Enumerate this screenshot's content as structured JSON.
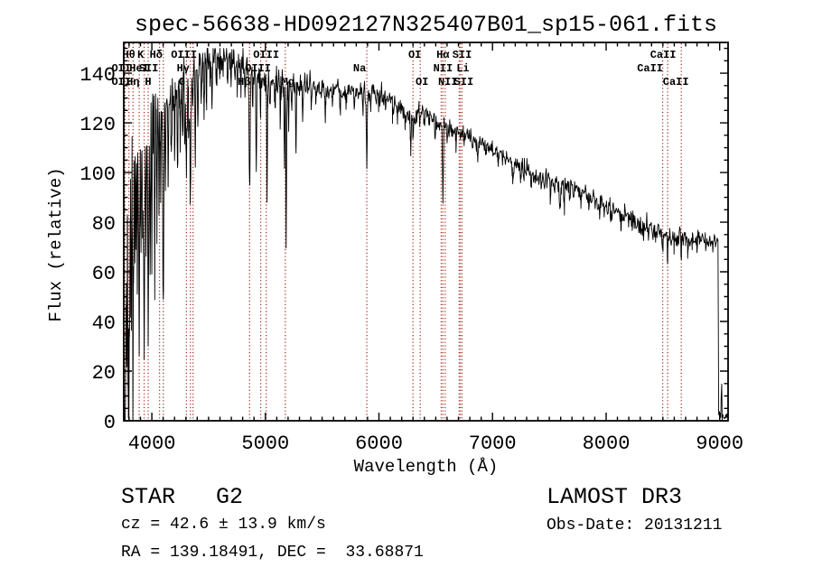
{
  "title": "spec-56638-HD092127N325407B01_sp15-061.fits",
  "annotations": {
    "class_line": "STAR   G2",
    "cz_line": "cz = 42.6 ± 13.9 km/s",
    "radec_line": "RA = 139.18491, DEC =  33.68871",
    "survey": "LAMOST DR3",
    "obsdate": "Obs-Date: 20131211"
  },
  "chart_data": {
    "type": "line",
    "title": "spec-56638-HD092127N325407B01_sp15-061.fits",
    "xlabel": "Wavelength (Å)",
    "ylabel": "Flux (relative)",
    "xlim": [
      3753,
      9074
    ],
    "ylim": [
      0,
      152.4
    ],
    "grid": false,
    "line_color": "#000000",
    "marker_color": "#a33428",
    "xticks": {
      "major": [
        4000,
        5000,
        6000,
        7000,
        8000,
        9000
      ],
      "labels": [
        "4000",
        "5000",
        "6000",
        "7000",
        "8000",
        "9000"
      ],
      "minor_step": 100
    },
    "yticks": {
      "major": [
        0,
        20,
        40,
        60,
        80,
        100,
        120,
        140
      ],
      "labels": [
        "0",
        "20",
        "40",
        "60",
        "80",
        "100",
        "120",
        "140"
      ],
      "minor_step": 5
    },
    "spectral_lines": [
      {
        "label": "Hθ",
        "wavelength": 3798,
        "row": 1,
        "dx": 0
      },
      {
        "label": "K",
        "wavelength": 3933,
        "row": 1,
        "dx": -4
      },
      {
        "label": "Hδ",
        "wavelength": 4101,
        "row": 1,
        "dx": -8
      },
      {
        "label": "OIII",
        "wavelength": 4363,
        "row": 1,
        "dx": -10
      },
      {
        "label": "OIII",
        "wavelength": 5007,
        "row": 1,
        "dx": 0
      },
      {
        "label": "OI",
        "wavelength": 6300,
        "row": 1,
        "dx": 2
      },
      {
        "label": "Hα",
        "wavelength": 6563,
        "row": 1,
        "dx": 0
      },
      {
        "label": "SII",
        "wavelength": 6716,
        "row": 1,
        "dx": 2
      },
      {
        "label": "CaII",
        "wavelength": 8542,
        "row": 1,
        "dx": -5
      },
      {
        "label": "OII",
        "wavelength": 3727,
        "row": 2,
        "dx": -4
      },
      {
        "label": "HeI",
        "wavelength": 3889,
        "row": 2,
        "dx": 0
      },
      {
        "label": "SII",
        "wavelength": 4068,
        "row": 2,
        "dx": -12
      },
      {
        "label": "Hγ",
        "wavelength": 4340,
        "row": 2,
        "dx": -8
      },
      {
        "label": "OIII",
        "wavelength": 4959,
        "row": 2,
        "dx": -3
      },
      {
        "label": "Na",
        "wavelength": 5893,
        "row": 2,
        "dx": -8
      },
      {
        "label": "NII",
        "wavelength": 6548,
        "row": 2,
        "dx": 2
      },
      {
        "label": "Li",
        "wavelength": 6707,
        "row": 2,
        "dx": 4
      },
      {
        "label": "CaII",
        "wavelength": 8498,
        "row": 2,
        "dx": -14
      },
      {
        "label": "OII",
        "wavelength": 3729,
        "row": 3,
        "dx": -4
      },
      {
        "label": "Hη",
        "wavelength": 3835,
        "row": 3,
        "dx": 0
      },
      {
        "label": "H",
        "wavelength": 3968,
        "row": 3,
        "dx": 0
      },
      {
        "label": "G",
        "wavelength": 4305,
        "row": 3,
        "dx": -5
      },
      {
        "label": "Hβ",
        "wavelength": 4861,
        "row": 3,
        "dx": -6
      },
      {
        "label": "Mg",
        "wavelength": 5175,
        "row": 3,
        "dx": 3
      },
      {
        "label": "OI",
        "wavelength": 6363,
        "row": 3,
        "dx": 2
      },
      {
        "label": "NII",
        "wavelength": 6583,
        "row": 3,
        "dx": 3
      },
      {
        "label": "SII",
        "wavelength": 6731,
        "row": 3,
        "dx": 2
      },
      {
        "label": "CaII",
        "wavelength": 8662,
        "row": 3,
        "dx": -6
      }
    ],
    "continuum": [
      [
        3753,
        90
      ],
      [
        3780,
        105
      ],
      [
        3810,
        115
      ],
      [
        3850,
        120
      ],
      [
        3900,
        122
      ],
      [
        3950,
        122
      ],
      [
        4000,
        125
      ],
      [
        4060,
        128
      ],
      [
        4120,
        130
      ],
      [
        4180,
        133
      ],
      [
        4240,
        136
      ],
      [
        4300,
        139
      ],
      [
        4360,
        141
      ],
      [
        4420,
        143
      ],
      [
        4480,
        145
      ],
      [
        4540,
        146
      ],
      [
        4600,
        147
      ],
      [
        4660,
        148
      ],
      [
        4720,
        146
      ],
      [
        4780,
        144
      ],
      [
        4840,
        141
      ],
      [
        4900,
        139
      ],
      [
        4960,
        138
      ],
      [
        5020,
        137
      ],
      [
        5080,
        136
      ],
      [
        5140,
        135
      ],
      [
        5200,
        134
      ],
      [
        5300,
        135
      ],
      [
        5400,
        135
      ],
      [
        5500,
        134
      ],
      [
        5600,
        133
      ],
      [
        5700,
        132
      ],
      [
        5800,
        133
      ],
      [
        5893,
        131
      ],
      [
        5960,
        132
      ],
      [
        6040,
        131
      ],
      [
        6120,
        129
      ],
      [
        6200,
        126
      ],
      [
        6270,
        122
      ],
      [
        6340,
        124
      ],
      [
        6420,
        124
      ],
      [
        6500,
        121
      ],
      [
        6563,
        119
      ],
      [
        6640,
        117
      ],
      [
        6720,
        116
      ],
      [
        6800,
        114
      ],
      [
        6880,
        112
      ],
      [
        6960,
        110
      ],
      [
        7040,
        108
      ],
      [
        7120,
        106
      ],
      [
        7200,
        103
      ],
      [
        7280,
        101
      ],
      [
        7360,
        99
      ],
      [
        7440,
        98
      ],
      [
        7520,
        96
      ],
      [
        7600,
        95
      ],
      [
        7680,
        94
      ],
      [
        7760,
        92
      ],
      [
        7840,
        90
      ],
      [
        7920,
        88
      ],
      [
        8000,
        86
      ],
      [
        8080,
        85
      ],
      [
        8160,
        83
      ],
      [
        8240,
        81
      ],
      [
        8320,
        79
      ],
      [
        8400,
        77
      ],
      [
        8480,
        76
      ],
      [
        8560,
        74
      ],
      [
        8640,
        74
      ],
      [
        8700,
        74
      ],
      [
        8760,
        73
      ],
      [
        8840,
        73
      ],
      [
        8920,
        72
      ],
      [
        8985,
        72
      ],
      [
        8988,
        40
      ],
      [
        8991,
        3
      ],
      [
        9010,
        2
      ],
      [
        9018,
        17
      ],
      [
        9022,
        2
      ],
      [
        9074,
        1
      ]
    ],
    "absorption_features": [
      [
        3756,
        3,
        75
      ],
      [
        3762,
        3,
        105
      ],
      [
        3771,
        3,
        88
      ],
      [
        3780,
        3,
        62
      ],
      [
        3790,
        3,
        76
      ],
      [
        3798,
        4,
        95
      ],
      [
        3808,
        3,
        58
      ],
      [
        3820,
        3,
        66
      ],
      [
        3835,
        4,
        92
      ],
      [
        3848,
        3,
        52
      ],
      [
        3860,
        3,
        56
      ],
      [
        3872,
        3,
        46
      ],
      [
        3889,
        4,
        88
      ],
      [
        3905,
        3,
        46
      ],
      [
        3920,
        3,
        42
      ],
      [
        3933,
        5,
        95
      ],
      [
        3950,
        3,
        46
      ],
      [
        3968,
        5,
        92
      ],
      [
        3985,
        3,
        50
      ],
      [
        4000,
        3,
        55
      ],
      [
        4026,
        3,
        60
      ],
      [
        4045,
        3,
        50
      ],
      [
        4063,
        3,
        45
      ],
      [
        4078,
        3,
        40
      ],
      [
        4101,
        5,
        80
      ],
      [
        4120,
        3,
        35
      ],
      [
        4144,
        3,
        40
      ],
      [
        4172,
        3,
        30
      ],
      [
        4200,
        3,
        28
      ],
      [
        4226,
        3,
        42
      ],
      [
        4250,
        3,
        25
      ],
      [
        4271,
        3,
        30
      ],
      [
        4290,
        3,
        28
      ],
      [
        4305,
        6,
        32
      ],
      [
        4325,
        3,
        22
      ],
      [
        4340,
        5,
        48
      ],
      [
        4360,
        3,
        18
      ],
      [
        4383,
        3,
        40
      ],
      [
        4405,
        3,
        25
      ],
      [
        4435,
        3,
        16
      ],
      [
        4460,
        3,
        18
      ],
      [
        4481,
        3,
        15
      ],
      [
        4530,
        3,
        15
      ],
      [
        4570,
        3,
        12
      ],
      [
        4620,
        3,
        10
      ],
      [
        4668,
        3,
        15
      ],
      [
        4700,
        3,
        10
      ],
      [
        4755,
        3,
        10
      ],
      [
        4785,
        3,
        11
      ],
      [
        4820,
        3,
        12
      ],
      [
        4861,
        5,
        46
      ],
      [
        4890,
        3,
        10
      ],
      [
        4920,
        3,
        40
      ],
      [
        4957,
        3,
        12
      ],
      [
        5015,
        3,
        45
      ],
      [
        5040,
        3,
        12
      ],
      [
        5085,
        3,
        10
      ],
      [
        5130,
        3,
        12
      ],
      [
        5168,
        3,
        30
      ],
      [
        5183,
        3,
        65
      ],
      [
        5205,
        3,
        14
      ],
      [
        5230,
        3,
        8
      ],
      [
        5270,
        3,
        28
      ],
      [
        5328,
        3,
        12
      ],
      [
        5405,
        3,
        10
      ],
      [
        5445,
        3,
        8
      ],
      [
        5528,
        3,
        8
      ],
      [
        5590,
        3,
        7
      ],
      [
        5658,
        3,
        7
      ],
      [
        5710,
        3,
        6
      ],
      [
        5782,
        3,
        7
      ],
      [
        5860,
        3,
        6
      ],
      [
        5893,
        4,
        30
      ],
      [
        5930,
        3,
        6
      ],
      [
        6000,
        3,
        5
      ],
      [
        6060,
        3,
        5
      ],
      [
        6122,
        3,
        7
      ],
      [
        6162,
        3,
        7
      ],
      [
        6230,
        3,
        6
      ],
      [
        6280,
        4,
        12
      ],
      [
        6300,
        3,
        8
      ],
      [
        6320,
        3,
        6
      ],
      [
        6360,
        3,
        6
      ],
      [
        6400,
        3,
        5
      ],
      [
        6440,
        3,
        6
      ],
      [
        6495,
        3,
        10
      ],
      [
        6563,
        4,
        30
      ],
      [
        6600,
        3,
        5
      ],
      [
        6680,
        3,
        5
      ],
      [
        6750,
        3,
        5
      ],
      [
        6870,
        5,
        8
      ],
      [
        6940,
        3,
        4
      ],
      [
        7050,
        3,
        4
      ],
      [
        7180,
        5,
        6
      ],
      [
        7250,
        3,
        4
      ],
      [
        7340,
        3,
        5
      ],
      [
        7430,
        3,
        4
      ],
      [
        7510,
        3,
        5
      ],
      [
        7594,
        6,
        10
      ],
      [
        7630,
        4,
        8
      ],
      [
        7680,
        3,
        5
      ],
      [
        7780,
        3,
        4
      ],
      [
        7850,
        3,
        4
      ],
      [
        7940,
        3,
        4
      ],
      [
        8040,
        3,
        4
      ],
      [
        8130,
        3,
        4
      ],
      [
        8230,
        3,
        5
      ],
      [
        8330,
        3,
        4
      ],
      [
        8430,
        3,
        4
      ],
      [
        8498,
        3,
        9
      ],
      [
        8542,
        3,
        11
      ],
      [
        8600,
        3,
        4
      ],
      [
        8662,
        3,
        10
      ],
      [
        8720,
        3,
        4
      ],
      [
        8800,
        3,
        4
      ],
      [
        8880,
        3,
        3
      ],
      [
        8940,
        3,
        3
      ]
    ],
    "noise_profile": [
      [
        3753,
        16
      ],
      [
        3800,
        13
      ],
      [
        3850,
        11
      ],
      [
        3900,
        10
      ],
      [
        3960,
        9
      ],
      [
        4020,
        7
      ],
      [
        4100,
        5
      ],
      [
        4200,
        4.5
      ],
      [
        4300,
        4.5
      ],
      [
        4400,
        4
      ],
      [
        4500,
        4
      ],
      [
        4600,
        3.5
      ],
      [
        4700,
        3.5
      ],
      [
        4800,
        3.5
      ],
      [
        4900,
        3
      ],
      [
        5000,
        3
      ],
      [
        5150,
        3
      ],
      [
        5300,
        2.5
      ],
      [
        5500,
        2.2
      ],
      [
        5700,
        2
      ],
      [
        5900,
        2
      ],
      [
        6100,
        1.8
      ],
      [
        6300,
        2
      ],
      [
        6500,
        1.8
      ],
      [
        6700,
        1.6
      ],
      [
        6900,
        1.6
      ],
      [
        7100,
        1.6
      ],
      [
        7300,
        1.8
      ],
      [
        7500,
        2
      ],
      [
        7620,
        2.4
      ],
      [
        7700,
        1.8
      ],
      [
        7900,
        1.8
      ],
      [
        8100,
        1.8
      ],
      [
        8300,
        2
      ],
      [
        8500,
        2
      ],
      [
        8700,
        2
      ],
      [
        8900,
        1.6
      ],
      [
        9000,
        1
      ],
      [
        9074,
        0.5
      ]
    ],
    "noise_seed": 12345
  }
}
